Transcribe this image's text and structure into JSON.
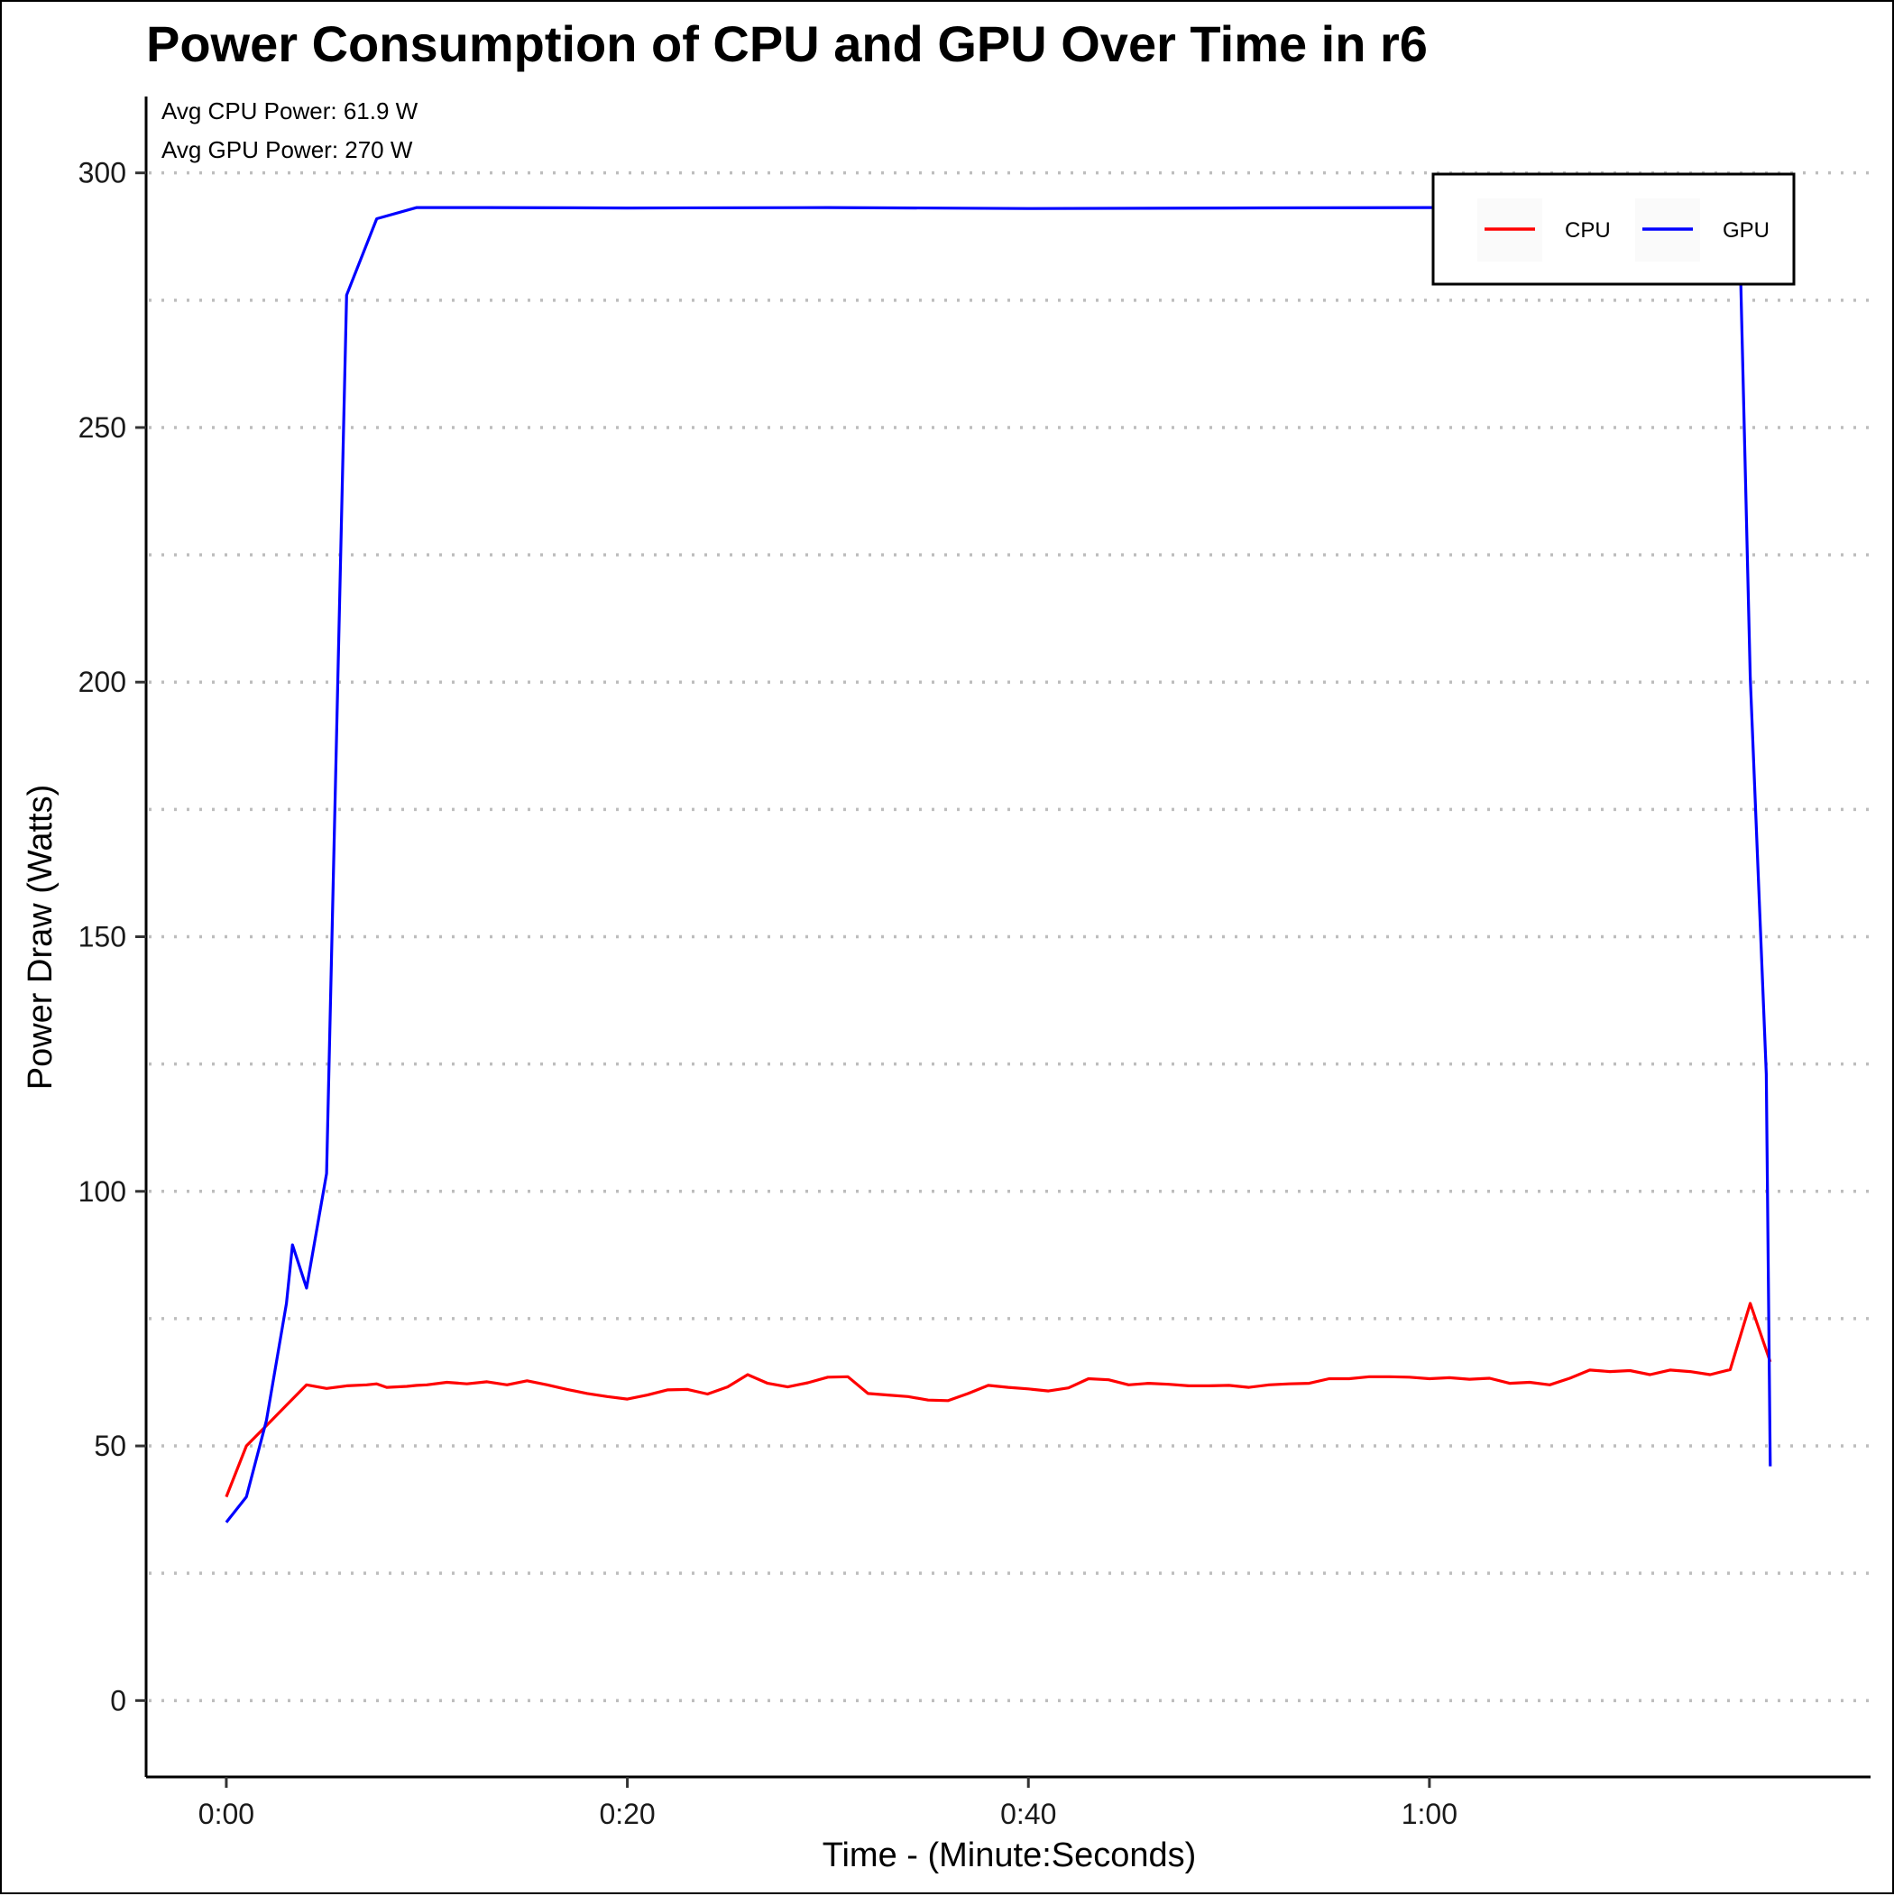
{
  "chart_data": {
    "type": "line",
    "title": "Power Consumption of CPU and GPU Over Time in r6",
    "xlabel": "Time - (Minute:Seconds)",
    "ylabel": "Power Draw (Watts)",
    "x_unit": "seconds",
    "xlim": [
      -4,
      82
    ],
    "ylim": [
      -15,
      315
    ],
    "x_ticks": [
      0,
      20,
      40,
      60
    ],
    "x_tick_labels": [
      "0:00",
      "0:20",
      "0:40",
      "1:00"
    ],
    "y_ticks": [
      0,
      50,
      100,
      150,
      200,
      250,
      300
    ],
    "y_tick_labels": [
      "0",
      "50",
      "100",
      "150",
      "200",
      "250",
      "300"
    ],
    "grid": "horizontal dotted, every 25",
    "legend_position": "top-right",
    "annotations": [
      "Avg CPU Power: 61.9 W",
      "Avg GPU Power: 270 W"
    ],
    "series": [
      {
        "name": "CPU",
        "color": "#ff0000",
        "x": [
          0,
          1,
          2,
          3,
          4,
          5,
          6,
          7,
          7.5,
          8,
          9,
          9.5,
          10,
          11,
          12,
          13,
          14,
          15,
          16,
          17,
          18,
          19,
          20,
          21,
          22,
          23,
          24,
          25,
          26,
          27,
          28,
          29,
          30,
          31,
          32,
          33,
          34,
          35,
          36,
          37,
          38,
          39,
          40,
          41,
          42,
          43,
          44,
          45,
          46,
          47,
          48,
          49,
          50,
          51,
          52,
          53,
          54,
          55,
          56,
          57,
          58,
          59,
          60,
          61,
          62,
          63,
          64,
          65,
          66,
          67,
          68,
          69,
          70,
          71,
          72,
          73,
          74,
          75,
          76,
          77
        ],
        "values": [
          40,
          50,
          54,
          58,
          62,
          61.3,
          61.8,
          62,
          62.2,
          61.5,
          61.7,
          61.9,
          62,
          62.5,
          62.2,
          62.6,
          62,
          62.8,
          62,
          61.1,
          60.3,
          59.7,
          59.2,
          60,
          61,
          61.1,
          60.2,
          61.6,
          64,
          62.3,
          61.6,
          62.4,
          63.5,
          63.6,
          60.3,
          60,
          59.7,
          59,
          58.9,
          60.3,
          61.9,
          61.5,
          61.2,
          60.8,
          61.4,
          63.2,
          63,
          62,
          62.3,
          62.1,
          61.8,
          61.8,
          61.9,
          61.5,
          62,
          62.2,
          62.3,
          63.2,
          63.2,
          63.6,
          63.6,
          63.5,
          63.2,
          63.4,
          63.1,
          63.3,
          62.3,
          62.5,
          62,
          63.3,
          64.9,
          64.6,
          64.8,
          64,
          64.9,
          64.6,
          64,
          65,
          78,
          66.5
        ]
      },
      {
        "name": "GPU",
        "color": "#0000ff",
        "x": [
          0,
          1,
          2,
          3,
          3.3,
          4,
          5,
          6,
          7,
          7.5,
          9.5,
          10,
          13,
          20,
          30,
          40,
          50,
          60,
          70,
          74,
          75.5,
          76,
          76.8,
          77
        ],
        "values": [
          35,
          40,
          55,
          78,
          89.5,
          81,
          103.5,
          276,
          286,
          291,
          293.2,
          293.2,
          293.2,
          293.1,
          293.2,
          293,
          293.1,
          293.2,
          293.1,
          293,
          283,
          201,
          123,
          46
        ]
      }
    ]
  }
}
